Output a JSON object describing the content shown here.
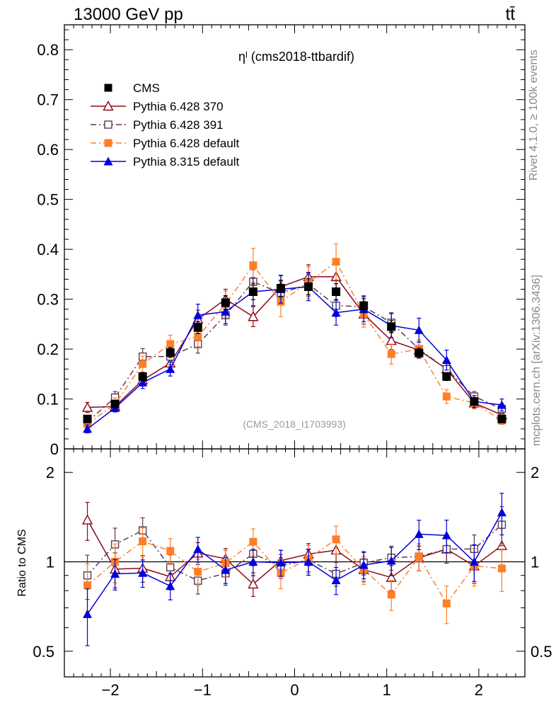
{
  "header": {
    "left": "13000 GeV pp",
    "right": "tt̄"
  },
  "side_labels": {
    "top": "Rivet 4.1.0, ≥ 100k events",
    "bottom": "mcplots.cern.ch [arXiv:1306.3436]"
  },
  "chart_data": {
    "type": "scatter",
    "title": "ηˡ (cms2018-ttbardif)",
    "watermark": "(CMS_2018_I1703993)",
    "x": [
      -2.25,
      -1.95,
      -1.65,
      -1.35,
      -1.05,
      -0.75,
      -0.45,
      -0.15,
      0.15,
      0.45,
      0.75,
      1.05,
      1.35,
      1.65,
      1.95,
      2.25
    ],
    "xlim": [
      -2.5,
      2.5
    ],
    "xticks": [
      -2,
      -1,
      0,
      1,
      2
    ],
    "xtick_labels": [
      "−2",
      "−1",
      "0",
      "1",
      "2"
    ],
    "main": {
      "ylim": [
        0,
        0.85
      ],
      "yticks": [
        0,
        0.1,
        0.2,
        0.3,
        0.4,
        0.5,
        0.6,
        0.7,
        0.8
      ],
      "ytick_labels": [
        "0",
        "0.1",
        "0.2",
        "0.3",
        "0.4",
        "0.5",
        "0.6",
        "0.7",
        "0.8"
      ]
    },
    "ratio": {
      "ylabel": "Ratio to CMS",
      "log": true,
      "ylim": [
        0.41,
        2.4
      ],
      "yticks": [
        0.5,
        1,
        2
      ],
      "ytick_labels": [
        "0.5",
        "1",
        "2"
      ]
    },
    "legend_position": "top-left",
    "series": [
      {
        "name": "CMS",
        "color": "#000000",
        "marker": "filled-square",
        "line": "none",
        "is_reference": true,
        "values": [
          0.06,
          0.09,
          0.145,
          0.193,
          0.243,
          0.293,
          0.315,
          0.322,
          0.325,
          0.315,
          0.287,
          0.245,
          0.192,
          0.145,
          0.095,
          0.06
        ],
        "errors": [
          0.005,
          0.006,
          0.008,
          0.01,
          0.012,
          0.014,
          0.016,
          0.016,
          0.016,
          0.016,
          0.014,
          0.012,
          0.01,
          0.008,
          0.006,
          0.005
        ]
      },
      {
        "name": "Pythia 6.428 370",
        "color": "#8b0a1a",
        "marker": "open-triangle",
        "line": "solid",
        "values": [
          0.083,
          0.085,
          0.138,
          0.172,
          0.26,
          0.3,
          0.265,
          0.325,
          0.345,
          0.345,
          0.27,
          0.217,
          0.198,
          0.16,
          0.092,
          0.068
        ],
        "errors": [
          0.01,
          0.01,
          0.012,
          0.014,
          0.018,
          0.02,
          0.02,
          0.022,
          0.024,
          0.024,
          0.02,
          0.018,
          0.016,
          0.014,
          0.01,
          0.008
        ]
      },
      {
        "name": "Pythia 6.428 391",
        "color": "#5c3a4e",
        "marker": "open-square",
        "line": "dashdot",
        "values": [
          0.054,
          0.103,
          0.185,
          0.185,
          0.21,
          0.268,
          0.335,
          0.312,
          0.33,
          0.287,
          0.285,
          0.253,
          0.2,
          0.16,
          0.105,
          0.08
        ],
        "errors": [
          0.008,
          0.012,
          0.016,
          0.016,
          0.018,
          0.02,
          0.024,
          0.024,
          0.024,
          0.022,
          0.022,
          0.02,
          0.018,
          0.014,
          0.01,
          0.01
        ]
      },
      {
        "name": "Pythia 6.428 default",
        "color": "#ff7f27",
        "marker": "filled-square",
        "line": "dashdot",
        "values": [
          0.05,
          0.09,
          0.17,
          0.21,
          0.225,
          0.29,
          0.368,
          0.295,
          0.333,
          0.375,
          0.27,
          0.19,
          0.2,
          0.105,
          0.092,
          0.057
        ],
        "errors": [
          0.008,
          0.012,
          0.016,
          0.018,
          0.02,
          0.026,
          0.034,
          0.03,
          0.032,
          0.036,
          0.026,
          0.02,
          0.018,
          0.014,
          0.012,
          0.008
        ]
      },
      {
        "name": "Pythia 8.315 default",
        "color": "#0000dd",
        "marker": "filled-triangle",
        "line": "solid",
        "values": [
          0.04,
          0.082,
          0.133,
          0.16,
          0.268,
          0.275,
          0.315,
          0.32,
          0.325,
          0.273,
          0.28,
          0.247,
          0.238,
          0.178,
          0.095,
          0.088
        ],
        "errors": [
          0.008,
          0.008,
          0.012,
          0.014,
          0.022,
          0.024,
          0.028,
          0.028,
          0.028,
          0.025,
          0.025,
          0.024,
          0.024,
          0.02,
          0.012,
          0.012
        ]
      }
    ]
  }
}
